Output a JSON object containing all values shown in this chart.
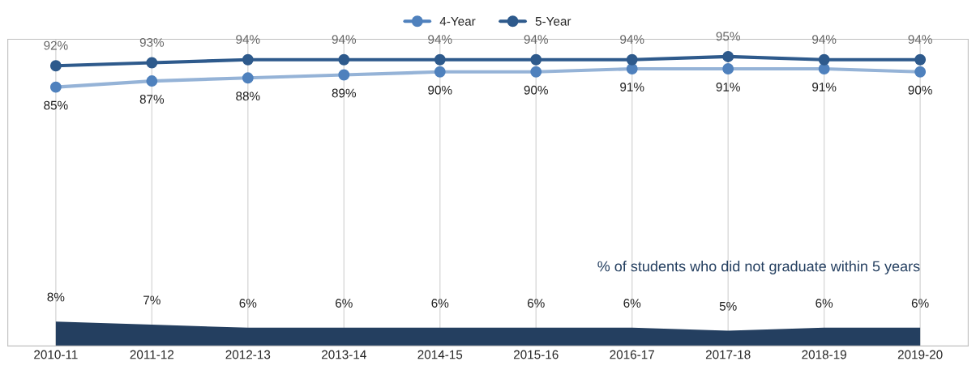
{
  "chart_data": {
    "type": "line",
    "categories": [
      "2010-11",
      "2011-12",
      "2012-13",
      "2013-14",
      "2014-15",
      "2015-16",
      "2016-17",
      "2017-18",
      "2018-19",
      "2019-20"
    ],
    "series": [
      {
        "name": "4-Year",
        "color": "#4f81bd",
        "values": [
          85,
          87,
          88,
          89,
          90,
          90,
          91,
          91,
          91,
          90
        ],
        "value_labels": [
          "85%",
          "87%",
          "88%",
          "89%",
          "90%",
          "90%",
          "91%",
          "91%",
          "91%",
          "90%"
        ]
      },
      {
        "name": "5-Year",
        "color": "#2e5a8c",
        "values": [
          92,
          93,
          94,
          94,
          94,
          94,
          94,
          95,
          94,
          94
        ],
        "value_labels": [
          "92%",
          "93%",
          "94%",
          "94%",
          "94%",
          "94%",
          "94%",
          "95%",
          "94%",
          "94%"
        ]
      },
      {
        "name": "% of students who did not graduate within 5 years",
        "type": "area",
        "marker": "none",
        "color": "#243f60",
        "values": [
          8,
          7,
          6,
          6,
          6,
          6,
          6,
          5,
          6,
          6
        ],
        "value_labels": [
          "8%",
          "7%",
          "6%",
          "6%",
          "6%",
          "6%",
          "6%",
          "5%",
          "6%",
          "6%"
        ]
      }
    ],
    "tick_labels": "x",
    "grid": "x",
    "legend": "top",
    "marker": "circle"
  }
}
